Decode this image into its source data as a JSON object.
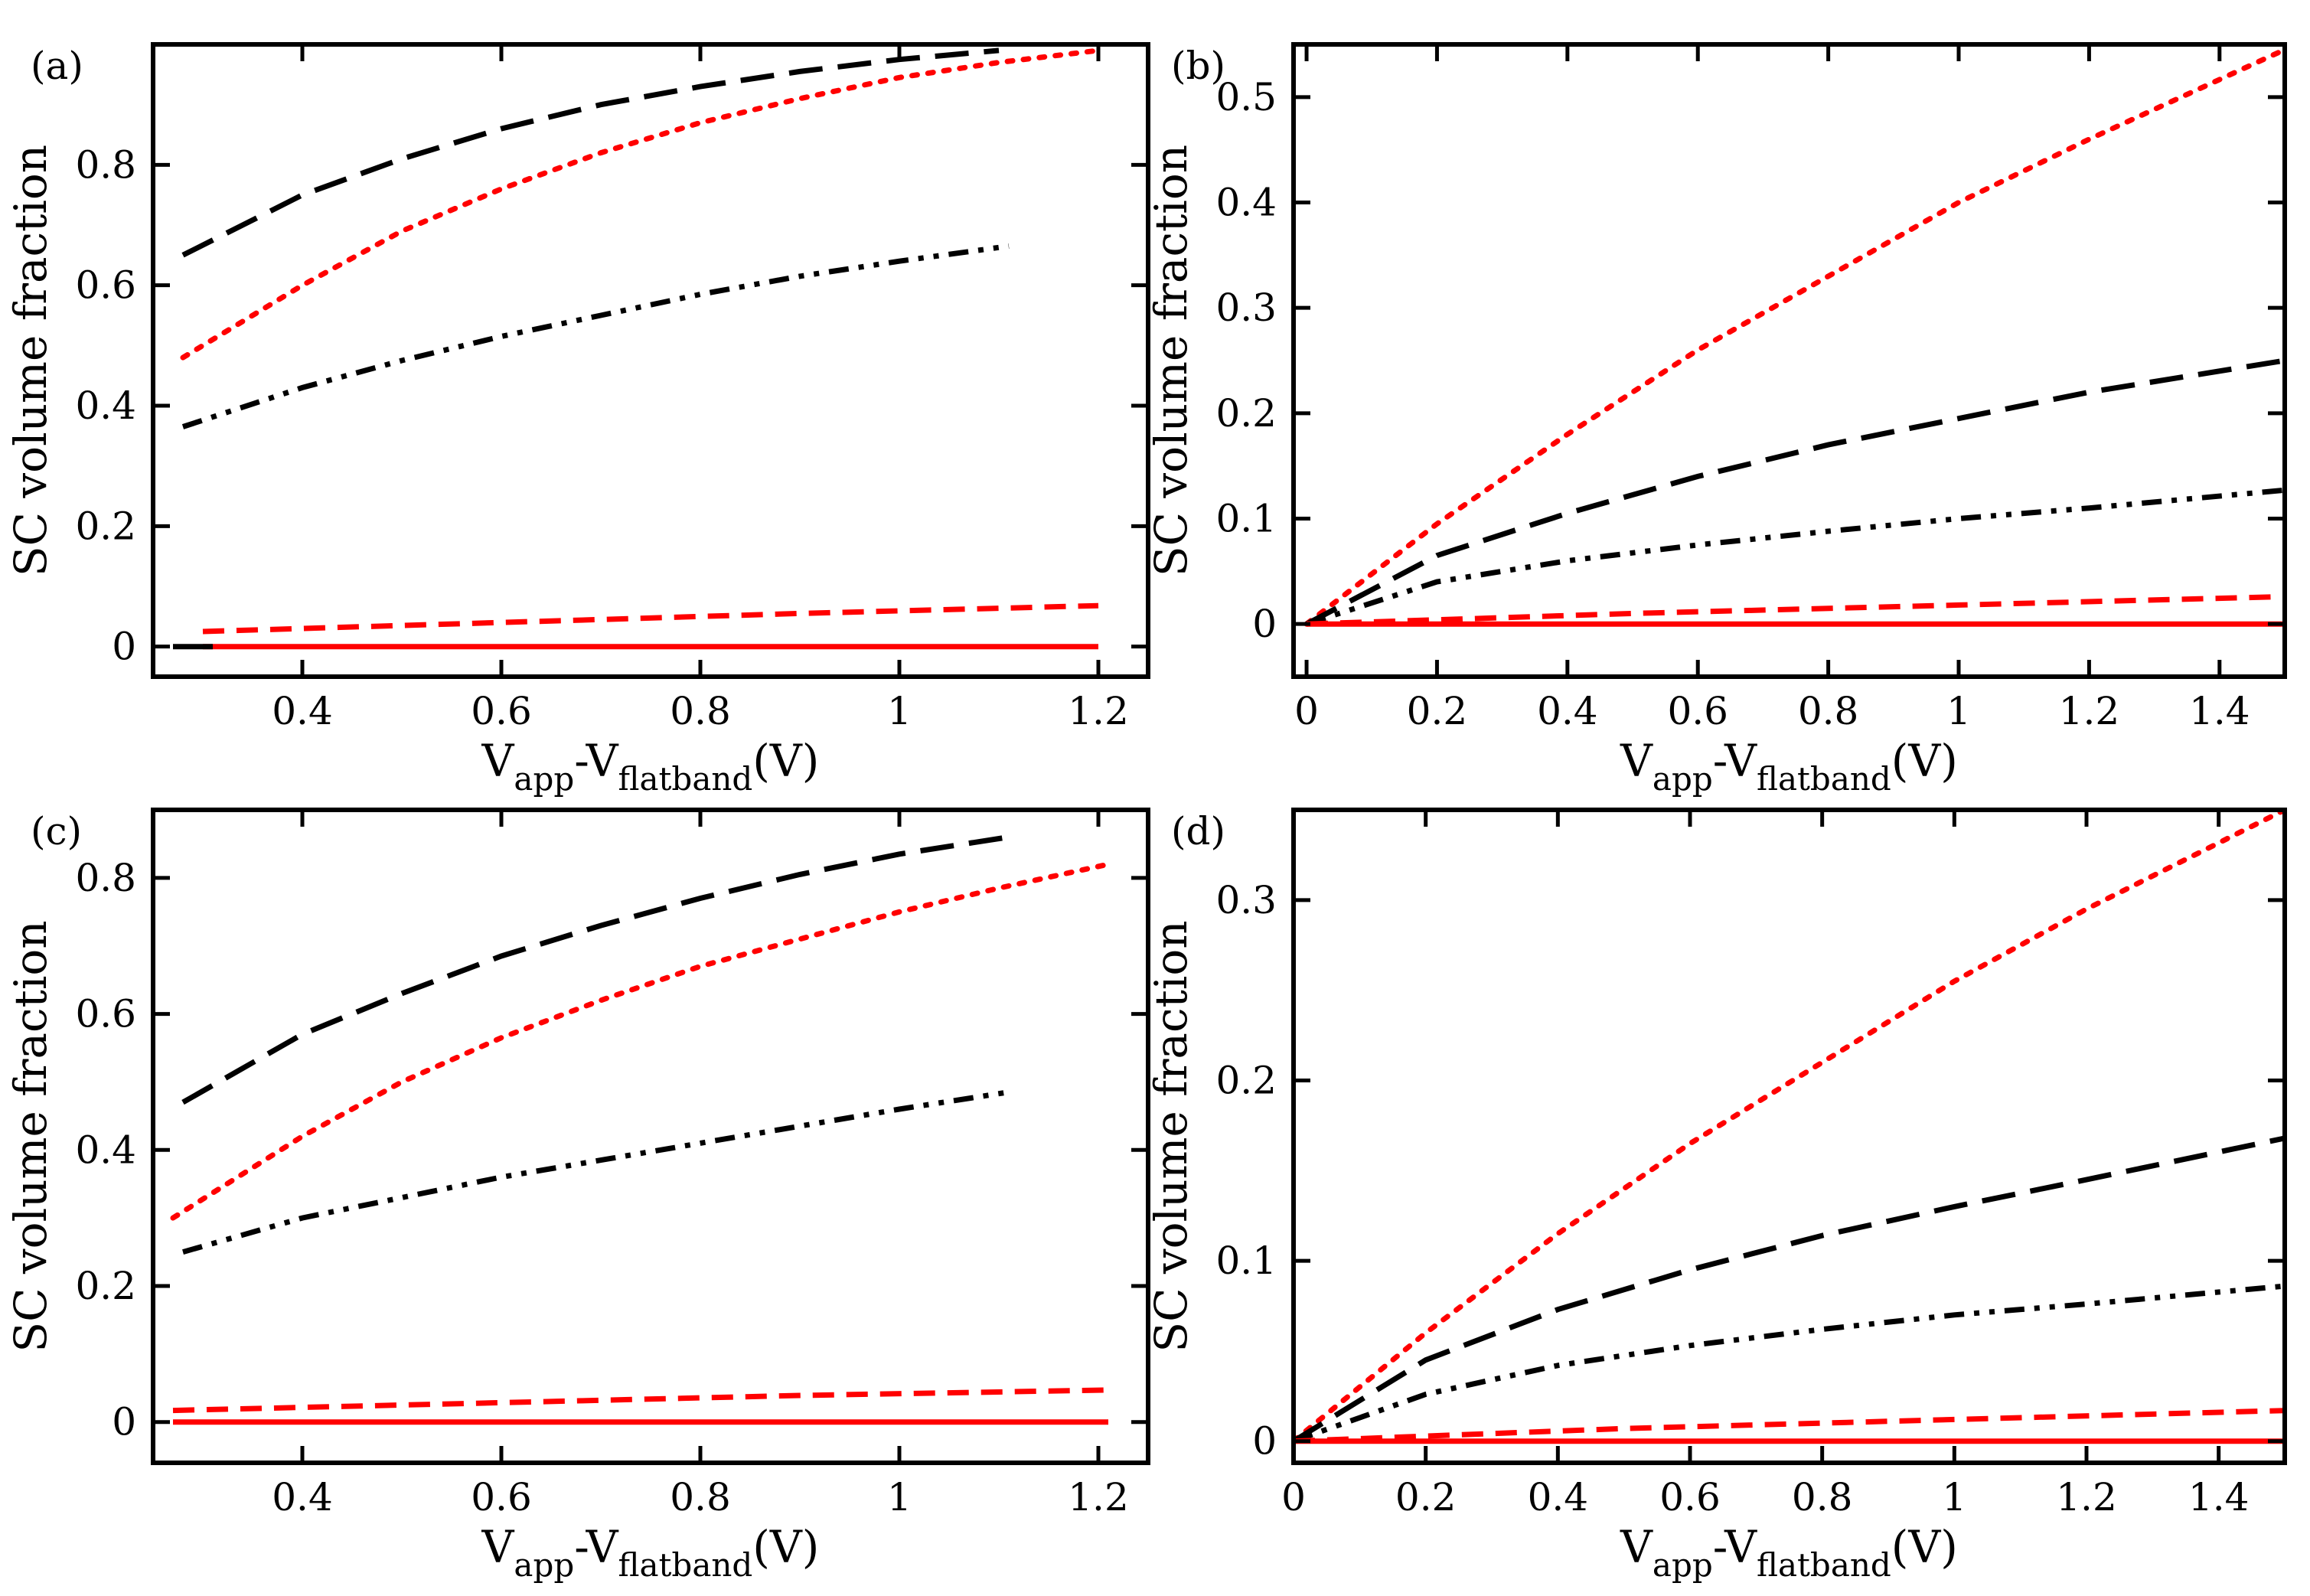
{
  "colors": {
    "black": "#000000",
    "red": "#ff0000",
    "background": "#ffffff"
  },
  "chart_data": [
    {
      "type": "line",
      "panel_label": "(a)",
      "ylabel": "SC volume fraction",
      "xlabel": {
        "main1": "V",
        "sub1": "app",
        "mid": "-V",
        "sub2": "flatband",
        "tail": "(V)"
      },
      "xlim": [
        0.25,
        1.25
      ],
      "ylim": [
        -0.05,
        1.0
      ],
      "xticks": [
        0.4,
        0.6,
        0.8,
        1.0,
        1.2
      ],
      "xticklabels": [
        "0.4",
        "0.6",
        "0.8",
        "1",
        "1.2"
      ],
      "yticks": [
        0,
        0.2,
        0.4,
        0.6,
        0.8
      ],
      "yticklabels": [
        "0",
        "0.2",
        "0.4",
        "0.6",
        "0.8"
      ],
      "grid": false,
      "series": [
        {
          "name": "black-long-dash",
          "color": "#000000",
          "style": "long-dash",
          "x": [
            0.28,
            0.4,
            0.5,
            0.6,
            0.7,
            0.8,
            0.9,
            1.0,
            1.1
          ],
          "y": [
            0.65,
            0.75,
            0.81,
            0.86,
            0.9,
            0.93,
            0.955,
            0.975,
            0.99
          ]
        },
        {
          "name": "red-dotted",
          "color": "#ff0000",
          "style": "dotted",
          "x": [
            0.28,
            0.4,
            0.5,
            0.6,
            0.7,
            0.8,
            0.9,
            1.0,
            1.1,
            1.2
          ],
          "y": [
            0.48,
            0.6,
            0.69,
            0.76,
            0.82,
            0.87,
            0.91,
            0.945,
            0.97,
            0.99
          ]
        },
        {
          "name": "black-dash-dot-dot",
          "color": "#000000",
          "style": "dash-dot-dot",
          "x": [
            0.28,
            0.4,
            0.5,
            0.6,
            0.7,
            0.8,
            0.9,
            1.0,
            1.11
          ],
          "y": [
            0.365,
            0.43,
            0.475,
            0.515,
            0.55,
            0.585,
            0.615,
            0.64,
            0.665
          ]
        },
        {
          "name": "red-short-dash",
          "color": "#ff0000",
          "style": "short-dash",
          "x": [
            0.3,
            0.5,
            0.7,
            0.9,
            1.2
          ],
          "y": [
            0.025,
            0.035,
            0.045,
            0.055,
            0.068
          ]
        },
        {
          "name": "red-solid",
          "color": "#ff0000",
          "style": "solid",
          "x": [
            0.3,
            1.2
          ],
          "y": [
            0.0,
            0.0
          ]
        },
        {
          "name": "black-solid",
          "color": "#000000",
          "style": "solid",
          "x": [
            0.27,
            0.31
          ],
          "y": [
            0.0,
            0.0
          ]
        }
      ]
    },
    {
      "type": "line",
      "panel_label": "(b)",
      "ylabel": "SC volume fraction",
      "xlabel": {
        "main1": "V",
        "sub1": "app",
        "mid": "-V",
        "sub2": "flatband",
        "tail": "(V)"
      },
      "xlim": [
        -0.02,
        1.5
      ],
      "ylim": [
        -0.05,
        0.55
      ],
      "xticks": [
        0,
        0.2,
        0.4,
        0.6,
        0.8,
        1.0,
        1.2,
        1.4
      ],
      "xticklabels": [
        "0",
        "0.2",
        "0.4",
        "0.6",
        "0.8",
        "1",
        "1.2",
        "1.4"
      ],
      "yticks": [
        0,
        0.1,
        0.2,
        0.3,
        0.4,
        0.5
      ],
      "yticklabels": [
        "0",
        "0.1",
        "0.2",
        "0.3",
        "0.4",
        "0.5"
      ],
      "grid": false,
      "series": [
        {
          "name": "red-dotted",
          "color": "#ff0000",
          "style": "dotted",
          "x": [
            0,
            0.2,
            0.4,
            0.6,
            0.8,
            1.0,
            1.2,
            1.5
          ],
          "y": [
            0,
            0.095,
            0.18,
            0.26,
            0.33,
            0.4,
            0.46,
            0.545
          ]
        },
        {
          "name": "black-long-dash",
          "color": "#000000",
          "style": "long-dash",
          "x": [
            0,
            0.2,
            0.4,
            0.6,
            0.8,
            1.0,
            1.2,
            1.5
          ],
          "y": [
            0,
            0.065,
            0.105,
            0.14,
            0.17,
            0.195,
            0.22,
            0.25
          ]
        },
        {
          "name": "black-dash-dot-dot",
          "color": "#000000",
          "style": "dash-dot-dot",
          "x": [
            0,
            0.2,
            0.4,
            0.6,
            0.8,
            1.0,
            1.2,
            1.5
          ],
          "y": [
            0,
            0.04,
            0.06,
            0.075,
            0.088,
            0.1,
            0.11,
            0.127
          ]
        },
        {
          "name": "red-short-dash",
          "color": "#ff0000",
          "style": "short-dash",
          "x": [
            0,
            0.5,
            1.0,
            1.5
          ],
          "y": [
            0,
            0.01,
            0.018,
            0.026
          ]
        },
        {
          "name": "red-solid",
          "color": "#ff0000",
          "style": "solid",
          "x": [
            0,
            1.5
          ],
          "y": [
            0,
            0
          ]
        }
      ]
    },
    {
      "type": "line",
      "panel_label": "(c)",
      "ylabel": "SC volume fraction",
      "xlabel": {
        "main1": "V",
        "sub1": "app",
        "mid": "-V",
        "sub2": "flatband",
        "tail": "(V)"
      },
      "xlim": [
        0.25,
        1.25
      ],
      "ylim": [
        -0.06,
        0.9
      ],
      "xticks": [
        0.4,
        0.6,
        0.8,
        1.0,
        1.2
      ],
      "xticklabels": [
        "0.4",
        "0.6",
        "0.8",
        "1",
        "1.2"
      ],
      "yticks": [
        0,
        0.2,
        0.4,
        0.6,
        0.8
      ],
      "yticklabels": [
        "0",
        "0.2",
        "0.4",
        "0.6",
        "0.8"
      ],
      "grid": false,
      "series": [
        {
          "name": "black-long-dash",
          "color": "#000000",
          "style": "long-dash",
          "x": [
            0.28,
            0.4,
            0.5,
            0.6,
            0.7,
            0.8,
            0.9,
            1.0,
            1.11
          ],
          "y": [
            0.47,
            0.57,
            0.63,
            0.685,
            0.73,
            0.77,
            0.805,
            0.835,
            0.86
          ]
        },
        {
          "name": "red-dotted",
          "color": "#ff0000",
          "style": "dotted",
          "x": [
            0.27,
            0.4,
            0.5,
            0.6,
            0.7,
            0.8,
            0.9,
            1.0,
            1.1,
            1.21
          ],
          "y": [
            0.3,
            0.42,
            0.5,
            0.565,
            0.62,
            0.67,
            0.71,
            0.75,
            0.785,
            0.82
          ]
        },
        {
          "name": "black-dash-dot-dot",
          "color": "#000000",
          "style": "dash-dot-dot",
          "x": [
            0.28,
            0.4,
            0.5,
            0.6,
            0.7,
            0.8,
            0.9,
            1.0,
            1.11
          ],
          "y": [
            0.25,
            0.3,
            0.33,
            0.36,
            0.385,
            0.41,
            0.435,
            0.46,
            0.485
          ]
        },
        {
          "name": "red-short-dash",
          "color": "#ff0000",
          "style": "short-dash",
          "x": [
            0.27,
            0.5,
            0.7,
            0.9,
            1.21
          ],
          "y": [
            0.017,
            0.025,
            0.032,
            0.039,
            0.047
          ]
        },
        {
          "name": "red-solid",
          "color": "#ff0000",
          "style": "solid",
          "x": [
            0.27,
            1.21
          ],
          "y": [
            0,
            0
          ]
        }
      ]
    },
    {
      "type": "line",
      "panel_label": "(d)",
      "ylabel": "SC volume fraction",
      "xlabel": {
        "main1": "V",
        "sub1": "app",
        "mid": "-V",
        "sub2": "flatband",
        "tail": "(V)"
      },
      "xlim": [
        0,
        1.5
      ],
      "ylim": [
        -0.012,
        0.35
      ],
      "xticks": [
        0,
        0.2,
        0.4,
        0.6,
        0.8,
        1.0,
        1.2,
        1.4
      ],
      "xticklabels": [
        "0",
        "0.2",
        "0.4",
        "0.6",
        "0.8",
        "1",
        "1.2",
        "1.4"
      ],
      "yticks": [
        0,
        0.1,
        0.2,
        0.3
      ],
      "yticklabels": [
        "0",
        "0.1",
        "0.2",
        "0.3"
      ],
      "grid": false,
      "series": [
        {
          "name": "red-dotted",
          "color": "#ff0000",
          "style": "dotted",
          "x": [
            0,
            0.2,
            0.4,
            0.6,
            0.8,
            1.0,
            1.2,
            1.5
          ],
          "y": [
            0,
            0.06,
            0.115,
            0.165,
            0.21,
            0.255,
            0.295,
            0.35
          ]
        },
        {
          "name": "black-long-dash",
          "color": "#000000",
          "style": "long-dash",
          "x": [
            0,
            0.2,
            0.4,
            0.6,
            0.8,
            1.0,
            1.2,
            1.5
          ],
          "y": [
            0,
            0.045,
            0.073,
            0.095,
            0.114,
            0.13,
            0.145,
            0.168
          ]
        },
        {
          "name": "black-dash-dot-dot",
          "color": "#000000",
          "style": "dash-dot-dot",
          "x": [
            0,
            0.2,
            0.4,
            0.6,
            0.8,
            1.0,
            1.2,
            1.5
          ],
          "y": [
            0,
            0.026,
            0.042,
            0.053,
            0.062,
            0.07,
            0.076,
            0.086
          ]
        },
        {
          "name": "red-short-dash",
          "color": "#ff0000",
          "style": "short-dash",
          "x": [
            0,
            0.5,
            1.0,
            1.5
          ],
          "y": [
            0,
            0.007,
            0.012,
            0.017
          ]
        },
        {
          "name": "red-solid",
          "color": "#ff0000",
          "style": "solid",
          "x": [
            0,
            1.5
          ],
          "y": [
            0,
            0
          ]
        }
      ]
    }
  ]
}
